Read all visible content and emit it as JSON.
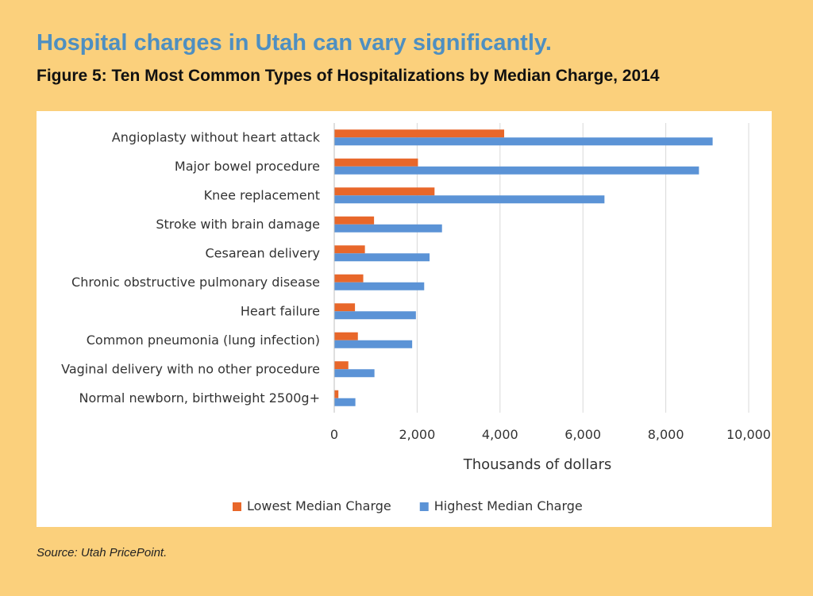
{
  "page": {
    "headline": "Hospital charges in Utah can vary significantly.",
    "subtitle": "Figure 5: Ten Most Common Types of Hospitalizations by Median Charge, 2014",
    "source": "Source: Utah PricePoint."
  },
  "colors": {
    "background": "#FBD07C",
    "headline": "#4E8FC1",
    "lowest": "#E8672A",
    "highest": "#5B93D6",
    "grid": "#D9D9D9"
  },
  "chart_data": {
    "type": "bar",
    "orientation": "horizontal",
    "title": "",
    "xlabel": "Thousands of dollars",
    "ylabel": "",
    "xlim": [
      0,
      10000
    ],
    "xticks": [
      0,
      2000,
      4000,
      6000,
      8000,
      10000
    ],
    "xtick_labels": [
      "0",
      "2,000",
      "4,000",
      "6,000",
      "8,000",
      "10,000"
    ],
    "grid": true,
    "legend_position": "bottom",
    "categories": [
      "Angioplasty without heart attack",
      "Major bowel procedure",
      "Knee replacement",
      "Stroke with brain damage",
      "Cesarean delivery",
      "Chronic obstructive pulmonary disease",
      "Heart failure",
      "Common pneumonia (lung infection)",
      "Vaginal delivery with no other procedure",
      "Normal newborn, birthweight 2500g+"
    ],
    "series": [
      {
        "name": "Lowest Median Charge",
        "color": "#E8672A",
        "values": [
          4100,
          2020,
          2420,
          960,
          740,
          700,
          500,
          570,
          340,
          100
        ]
      },
      {
        "name": "Highest Median Charge",
        "color": "#5B93D6",
        "values": [
          9130,
          8800,
          6520,
          2600,
          2300,
          2170,
          1970,
          1880,
          970,
          510
        ]
      }
    ]
  }
}
